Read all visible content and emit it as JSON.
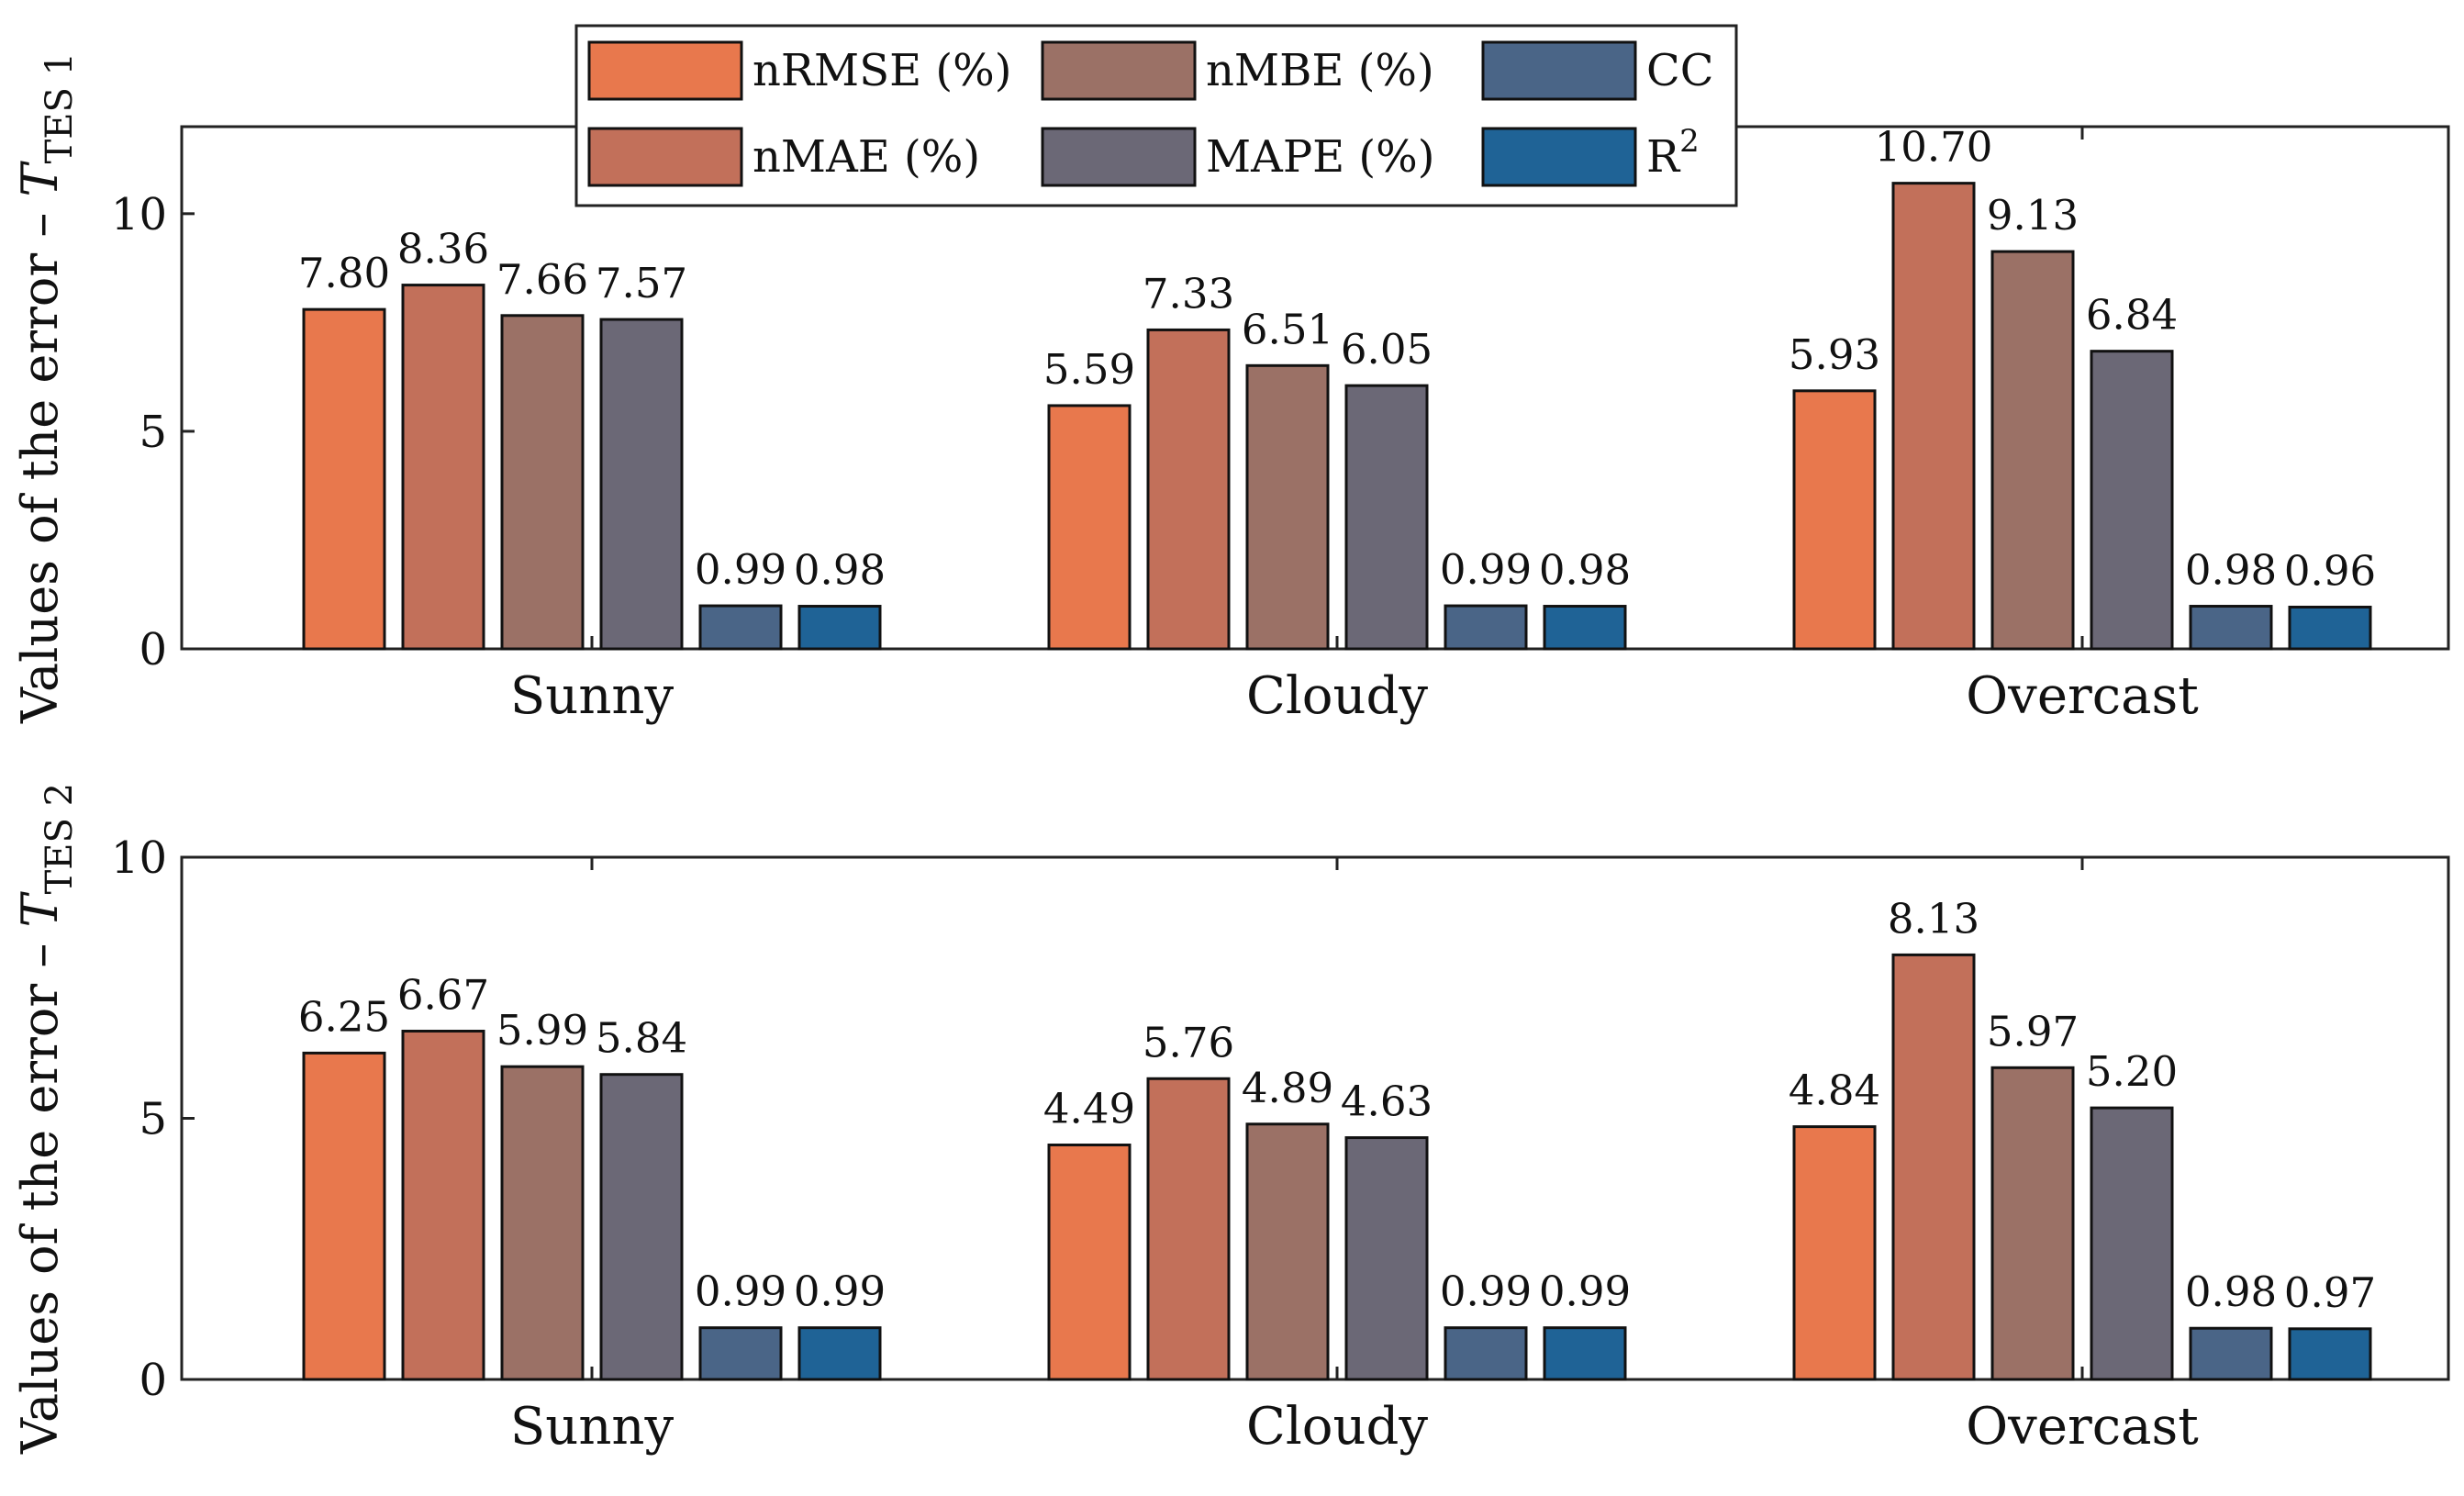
{
  "chart_data": [
    {
      "type": "bar",
      "ylabel": "Values of the error – T",
      "ylabel_sub": "TES 1",
      "ylim": [
        0,
        12
      ],
      "yticks": [
        0,
        5,
        10
      ],
      "categories": [
        "Sunny",
        "Cloudy",
        "Overcast"
      ],
      "series": [
        {
          "name": "nRMSE (%)",
          "values": [
            7.8,
            5.59,
            5.93
          ],
          "labels": [
            "7.80",
            "5.59",
            "5.93"
          ]
        },
        {
          "name": "nMAE (%)",
          "values": [
            8.36,
            7.33,
            10.7
          ],
          "labels": [
            "8.36",
            "7.33",
            "10.70"
          ]
        },
        {
          "name": "nMBE (%)",
          "values": [
            7.66,
            6.51,
            9.13
          ],
          "labels": [
            "7.66",
            "6.51",
            "9.13"
          ]
        },
        {
          "name": "MAPE (%)",
          "values": [
            7.57,
            6.05,
            6.84
          ],
          "labels": [
            "7.57",
            "6.05",
            "6.84"
          ]
        },
        {
          "name": "CC",
          "values": [
            0.99,
            0.99,
            0.98
          ],
          "labels": [
            "0.99",
            "0.99",
            "0.98"
          ]
        },
        {
          "name": "R",
          "values": [
            0.98,
            0.98,
            0.96
          ],
          "labels": [
            "0.98",
            "0.98",
            "0.96"
          ]
        }
      ]
    },
    {
      "type": "bar",
      "ylabel": "Values of the error – T",
      "ylabel_sub": "TES 2",
      "ylim": [
        0,
        10
      ],
      "yticks": [
        0,
        5,
        10
      ],
      "categories": [
        "Sunny",
        "Cloudy",
        "Overcast"
      ],
      "series": [
        {
          "name": "nRMSE (%)",
          "values": [
            6.25,
            4.49,
            4.84
          ],
          "labels": [
            "6.25",
            "4.49",
            "4.84"
          ]
        },
        {
          "name": "nMAE (%)",
          "values": [
            6.67,
            5.76,
            8.13
          ],
          "labels": [
            "6.67",
            "5.76",
            "8.13"
          ]
        },
        {
          "name": "nMBE (%)",
          "values": [
            5.99,
            4.89,
            5.97
          ],
          "labels": [
            "5.99",
            "4.89",
            "5.97"
          ]
        },
        {
          "name": "MAPE (%)",
          "values": [
            5.84,
            4.63,
            5.2
          ],
          "labels": [
            "5.84",
            "4.63",
            "5.20"
          ]
        },
        {
          "name": "CC",
          "values": [
            0.99,
            0.99,
            0.98
          ],
          "labels": [
            "0.99",
            "0.99",
            "0.98"
          ]
        },
        {
          "name": "R",
          "values": [
            0.99,
            0.99,
            0.97
          ],
          "labels": [
            "0.99",
            "0.99",
            "0.97"
          ]
        }
      ]
    }
  ],
  "legend": {
    "items": [
      {
        "name": "nRMSE (%)",
        "sup": ""
      },
      {
        "name": "nMBE (%)",
        "sup": ""
      },
      {
        "name": "CC",
        "sup": ""
      },
      {
        "name": "nMAE (%)",
        "sup": ""
      },
      {
        "name": "MAPE (%)",
        "sup": ""
      },
      {
        "name": "R",
        "sup": "2"
      }
    ],
    "placement": "top-left, spanning top of upper plot"
  },
  "colors": [
    "#e8784d",
    "#c2705a",
    "#9b7166",
    "#6b6876",
    "#4a6587",
    "#1f6396"
  ]
}
